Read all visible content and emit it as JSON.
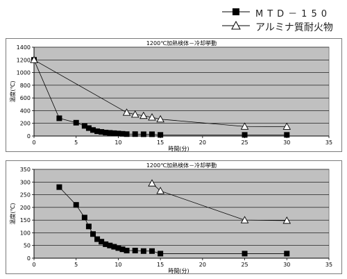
{
  "legend": {
    "items": [
      {
        "label": "MTD－150",
        "marker": "filled-square"
      },
      {
        "label": "アルミナ質耐火物",
        "marker": "open-triangle"
      }
    ]
  },
  "colors": {
    "plot_background": "#c0c0c0",
    "series_line": "#000000",
    "filled_marker": "#000000",
    "open_marker_fill": "#ffffff",
    "frame": "#808080"
  },
  "chart_data": [
    {
      "type": "scatter",
      "title": "1200℃加熱検体－冷却挙動",
      "xlabel": "時間(分)",
      "ylabel": "温度(℃)",
      "xlim": [
        0,
        35
      ],
      "ylim": [
        0,
        1400
      ],
      "xticks": [
        0,
        5,
        10,
        15,
        20,
        25,
        30,
        35
      ],
      "yticks": [
        0,
        200,
        400,
        600,
        800,
        1000,
        1200,
        1400
      ],
      "grid": true,
      "series": [
        {
          "name": "MTD－150",
          "marker": "filled-square",
          "x": [
            0,
            3,
            5,
            6,
            6.5,
            7,
            7.5,
            8,
            8.5,
            9,
            9.5,
            10,
            10.5,
            11,
            12,
            13,
            14,
            15,
            25,
            30
          ],
          "y": [
            1200,
            280,
            210,
            160,
            125,
            95,
            75,
            65,
            55,
            50,
            45,
            40,
            35,
            30,
            30,
            28,
            28,
            18,
            18,
            18
          ]
        },
        {
          "name": "アルミナ質耐火物",
          "marker": "open-triangle",
          "x": [
            0,
            11,
            12,
            13,
            14,
            15,
            25,
            30
          ],
          "y": [
            1200,
            370,
            340,
            320,
            295,
            265,
            150,
            148
          ]
        }
      ]
    },
    {
      "type": "scatter",
      "title": "1200℃加熱検体－冷却挙動",
      "xlabel": "時間(分)",
      "ylabel": "温度(℃)",
      "xlim": [
        0,
        35
      ],
      "ylim": [
        0,
        350
      ],
      "xticks": [
        0,
        5,
        10,
        15,
        20,
        25,
        30,
        35
      ],
      "yticks": [
        0,
        50,
        100,
        150,
        200,
        250,
        300,
        350
      ],
      "grid": true,
      "series": [
        {
          "name": "MTD－150",
          "marker": "filled-square",
          "x": [
            3,
            5,
            6,
            6.5,
            7,
            7.5,
            8,
            8.5,
            9,
            9.5,
            10,
            10.5,
            11,
            12,
            13,
            14,
            15,
            25,
            30
          ],
          "y": [
            280,
            210,
            160,
            125,
            95,
            75,
            65,
            55,
            50,
            45,
            40,
            35,
            30,
            30,
            28,
            28,
            18,
            18,
            18
          ]
        },
        {
          "name": "アルミナ質耐火物",
          "marker": "open-triangle",
          "x": [
            14,
            15,
            25,
            30
          ],
          "y": [
            295,
            265,
            150,
            148
          ]
        }
      ]
    }
  ]
}
